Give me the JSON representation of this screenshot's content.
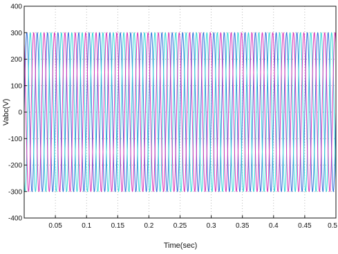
{
  "chart_data": {
    "type": "line",
    "title": "",
    "xlabel": "Time(sec)",
    "ylabel": "Vabc(V)",
    "xlim": [
      0,
      0.5
    ],
    "ylim": [
      -400,
      400
    ],
    "xticks": [
      0.05,
      0.1,
      0.15,
      0.2,
      0.25,
      0.3,
      0.35,
      0.4,
      0.45,
      0.5
    ],
    "xtick_labels": [
      "0.05",
      "0.1",
      "0.15",
      "0.2",
      "0.25",
      "0.3",
      "0.35",
      "0.4",
      "0.45",
      "0.5"
    ],
    "yticks": [
      -400,
      -300,
      -200,
      -100,
      0,
      100,
      200,
      300,
      400
    ],
    "ytick_labels": [
      "-400",
      "-300",
      "-200",
      "-100",
      "0",
      "100",
      "200",
      "300",
      "400"
    ],
    "grid": true,
    "series": [
      {
        "amplitude": 300,
        "frequency_hz": 60,
        "phase_deg": 0,
        "color": "#2f6fdb"
      },
      {
        "amplitude": 300,
        "frequency_hz": 60,
        "phase_deg": -120,
        "color": "#33d6d6"
      },
      {
        "amplitude": 300,
        "frequency_hz": 60,
        "phase_deg": 120,
        "color": "#d633b8"
      }
    ]
  }
}
